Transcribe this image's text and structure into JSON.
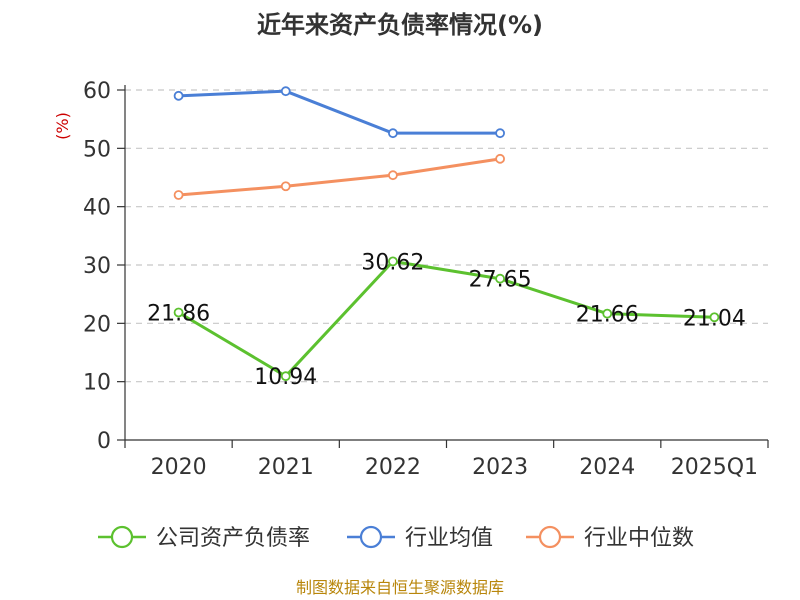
{
  "chart_data": {
    "type": "line",
    "title": "近年来资产负债率情况(%)",
    "ylabel": "(%)",
    "xlabel": "",
    "categories": [
      "2020",
      "2021",
      "2022",
      "2023",
      "2024",
      "2025Q1"
    ],
    "ylim": [
      0,
      60
    ],
    "yticks": [
      0,
      10,
      20,
      30,
      40,
      50,
      60
    ],
    "grid": true,
    "legend_position": "bottom",
    "series": [
      {
        "name": "公司资产负债率",
        "color": "#5cc12f",
        "values": [
          21.86,
          10.94,
          30.62,
          27.65,
          21.66,
          21.04
        ],
        "labels": [
          "21.86",
          "10.94",
          "30.62",
          "27.65",
          "21.66",
          "21.04"
        ]
      },
      {
        "name": "行业均值",
        "color": "#4a7fd6",
        "values": [
          59.0,
          59.8,
          52.6,
          52.6,
          null,
          null
        ]
      },
      {
        "name": "行业中位数",
        "color": "#f49060",
        "values": [
          42.0,
          43.5,
          45.4,
          48.2,
          null,
          null
        ]
      }
    ]
  },
  "footer": {
    "source": "制图数据来自恒生聚源数据库"
  }
}
